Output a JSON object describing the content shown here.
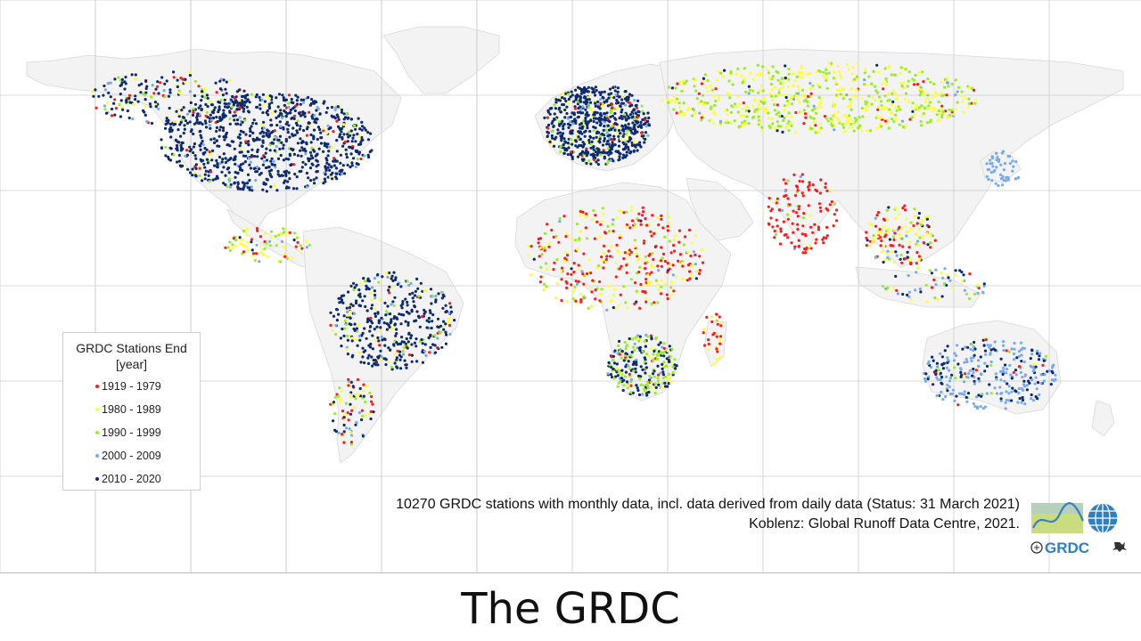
{
  "slide": {
    "title": "The GRDC"
  },
  "legend": {
    "title_line1": "GRDC Stations End",
    "title_line2": "[year]",
    "items": [
      {
        "label": "1919 - 1979",
        "color": "#ff1a1a"
      },
      {
        "label": "1980 - 1989",
        "color": "#ffff33"
      },
      {
        "label": "1990 - 1999",
        "color": "#99ee22"
      },
      {
        "label": "2000 - 2009",
        "color": "#77aaee"
      },
      {
        "label": "2010 - 2020",
        "color": "#0d2a6e"
      }
    ]
  },
  "caption": {
    "line1": "10270 GRDC stations with monthly data, incl. data derived from daily data (Status: 31 March 2021)",
    "line2": "Koblenz: Global Runoff Data Centre, 2021."
  },
  "logo": {
    "text": "GRDC",
    "icon": "grdc-globe-logo"
  },
  "map": {
    "land_color": "#f3f3f3",
    "border_color": "#d8d8d8",
    "grid_color": "#cccccc",
    "station_regions": [
      {
        "region": "North America",
        "period": "2010 - 2020"
      },
      {
        "region": "Europe",
        "period": "2010 - 2020"
      },
      {
        "region": "Russia / Siberia",
        "period": "1990 - 1999"
      },
      {
        "region": "India",
        "period": "1919 - 1979"
      },
      {
        "region": "West & Central Africa",
        "period": "1919 - 1979"
      },
      {
        "region": "Southern Africa",
        "period": "2010 - 2020"
      },
      {
        "region": "Brazil",
        "period": "2010 - 2020"
      },
      {
        "region": "Australia",
        "period": "2000 - 2009"
      },
      {
        "region": "Japan",
        "period": "2000 - 2009"
      }
    ]
  }
}
